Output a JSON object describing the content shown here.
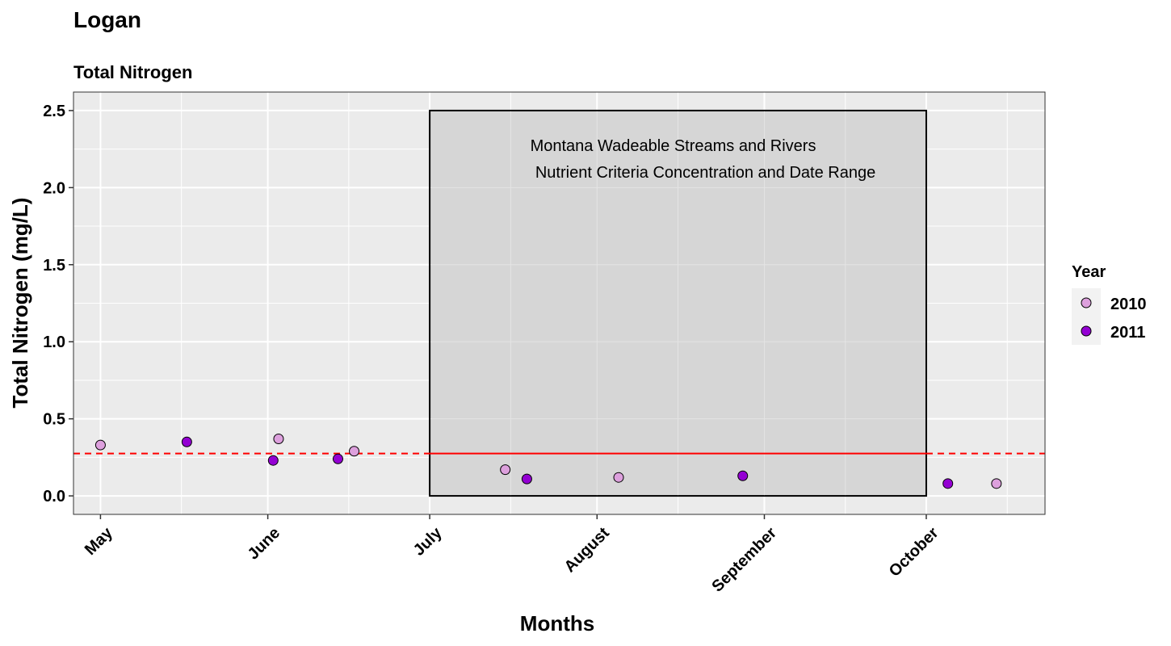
{
  "chart_data": {
    "type": "scatter",
    "title": "Logan",
    "subtitle": "Total Nitrogen",
    "xlabel": "Months",
    "ylabel": "Total Nitrogen (mg/L)",
    "x_type": "date",
    "xlim": [
      "2000-04-26",
      "2000-10-23"
    ],
    "ylim": [
      -0.12,
      2.62
    ],
    "x_ticks": [
      {
        "date": "2000-05-01",
        "label": "May"
      },
      {
        "date": "2000-06-01",
        "label": "June"
      },
      {
        "date": "2000-07-01",
        "label": "July"
      },
      {
        "date": "2000-08-01",
        "label": "August"
      },
      {
        "date": "2000-09-01",
        "label": "September"
      },
      {
        "date": "2000-10-01",
        "label": "October"
      }
    ],
    "x_minor_ticks": [
      "2000-05-16",
      "2000-06-16",
      "2000-07-16",
      "2000-08-16",
      "2000-09-16",
      "2000-10-16"
    ],
    "y_ticks": [
      0.0,
      0.5,
      1.0,
      1.5,
      2.0,
      2.5
    ],
    "y_tick_labels": [
      "0.0",
      "0.5",
      "1.0",
      "1.5",
      "2.0",
      "2.5"
    ],
    "grid": true,
    "legend": {
      "title": "Year",
      "position": "right"
    },
    "series": [
      {
        "name": "2010",
        "color": "#dda0dd",
        "points": [
          {
            "x": "2000-05-01",
            "y": 0.33
          },
          {
            "x": "2000-06-03",
            "y": 0.37
          },
          {
            "x": "2000-06-17",
            "y": 0.29
          },
          {
            "x": "2000-07-15",
            "y": 0.17
          },
          {
            "x": "2000-08-05",
            "y": 0.12
          },
          {
            "x": "2000-10-14",
            "y": 0.08
          }
        ]
      },
      {
        "name": "2011",
        "color": "#9400d3",
        "points": [
          {
            "x": "2000-05-17",
            "y": 0.35
          },
          {
            "x": "2000-06-02",
            "y": 0.23
          },
          {
            "x": "2000-06-14",
            "y": 0.24
          },
          {
            "x": "2000-07-19",
            "y": 0.11
          },
          {
            "x": "2000-08-28",
            "y": 0.13
          },
          {
            "x": "2000-10-05",
            "y": 0.08
          }
        ]
      }
    ],
    "criteria_box": {
      "x_start": "2000-07-01",
      "x_end": "2000-10-01",
      "y_min": 0.0,
      "y_max": 2.5,
      "fill": "#d6d6d6",
      "text_lines": [
        "Montana Wadeable Streams and Rivers",
        "Nutrient Criteria Concentration and Date Range"
      ]
    },
    "criteria_line": {
      "y": 0.275,
      "color": "#ff0000",
      "solid_within_box": true,
      "dashed_outside": true
    }
  }
}
